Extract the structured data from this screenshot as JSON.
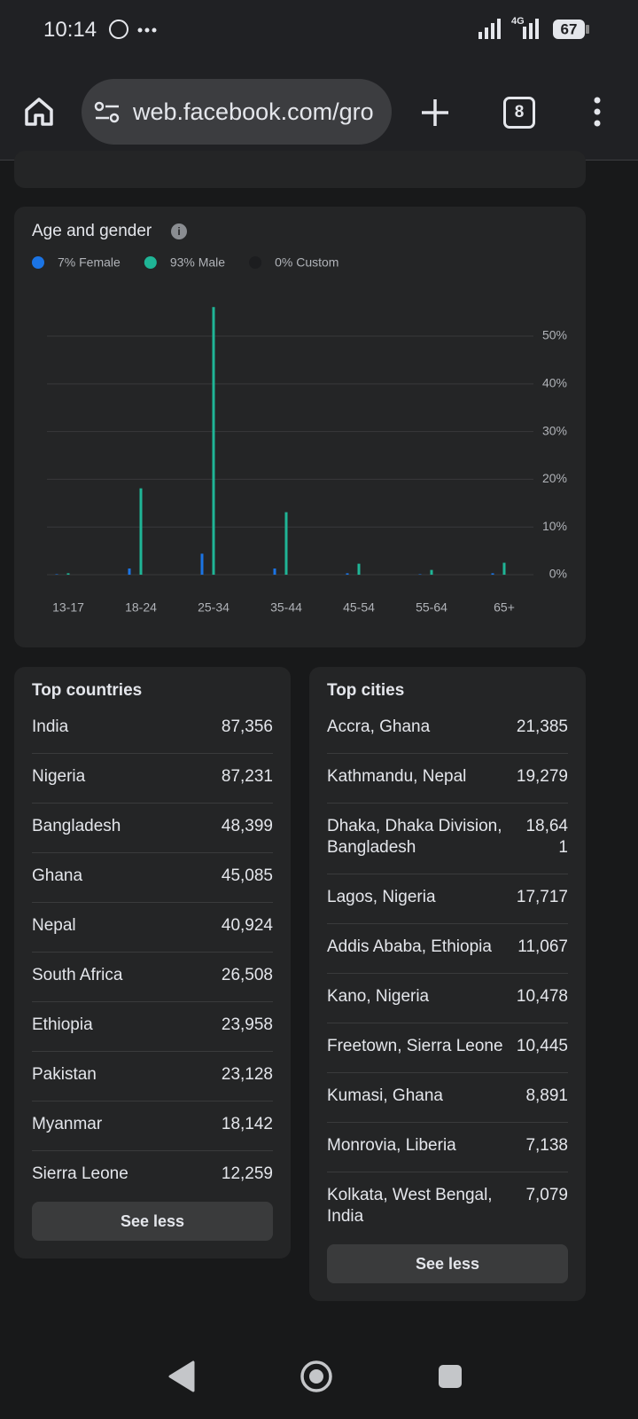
{
  "status_bar": {
    "time": "10:14",
    "network": "4G",
    "battery": "67"
  },
  "browser": {
    "url": "web.facebook.com/gro",
    "tab_count": "8"
  },
  "chart_data": {
    "type": "bar",
    "title": "Age and gender",
    "categories": [
      "13-17",
      "18-24",
      "25-34",
      "35-44",
      "45-54",
      "55-64",
      "65+"
    ],
    "series": [
      {
        "name": "7% Female",
        "color": "#1b74e4",
        "values": [
          0.1,
          1.3,
          4.4,
          1.3,
          0.3,
          0.1,
          0.3
        ]
      },
      {
        "name": "93% Male",
        "color": "#1fb596",
        "values": [
          0.3,
          18.1,
          56.1,
          13.1,
          2.3,
          1.0,
          2.5
        ]
      },
      {
        "name": "0% Custom",
        "color": "#1c1d1f",
        "values": [
          0,
          0,
          0,
          0,
          0,
          0,
          0
        ]
      }
    ],
    "ylim": [
      0,
      58
    ],
    "yticks": [
      {
        "value": 0,
        "label": "0%"
      },
      {
        "value": 10,
        "label": "10%"
      },
      {
        "value": 20,
        "label": "20%"
      },
      {
        "value": 30,
        "label": "30%"
      },
      {
        "value": 40,
        "label": "40%"
      },
      {
        "value": 50,
        "label": "50%"
      }
    ],
    "grid": true,
    "legend": "top-left"
  },
  "top_countries": {
    "title": "Top countries",
    "button": "See less",
    "rows": [
      [
        "India",
        "87,356"
      ],
      [
        "Nigeria",
        "87,231"
      ],
      [
        "Bangladesh",
        "48,399"
      ],
      [
        "Ghana",
        "45,085"
      ],
      [
        "Nepal",
        "40,924"
      ],
      [
        "South Africa",
        "26,508"
      ],
      [
        "Ethiopia",
        "23,958"
      ],
      [
        "Pakistan",
        "23,128"
      ],
      [
        "Myanmar",
        "18,142"
      ],
      [
        "Sierra Leone",
        "12,259"
      ]
    ]
  },
  "top_cities": {
    "title": "Top cities",
    "button": "See less",
    "rows": [
      [
        "Accra, Ghana",
        "21,385"
      ],
      [
        "Kathmandu, Nepal",
        "19,279"
      ],
      [
        "Dhaka, Dhaka Division, Bangladesh",
        "18,641"
      ],
      [
        "Lagos, Nigeria",
        "17,717"
      ],
      [
        "Addis Ababa, Ethiopia",
        "11,067"
      ],
      [
        "Kano, Nigeria",
        "10,478"
      ],
      [
        "Freetown, Sierra Leone",
        "10,445"
      ],
      [
        "Kumasi, Ghana",
        "8,891"
      ],
      [
        "Monrovia, Liberia",
        "7,138"
      ],
      [
        "Kolkata, West Bengal, India",
        "7,079"
      ]
    ]
  }
}
